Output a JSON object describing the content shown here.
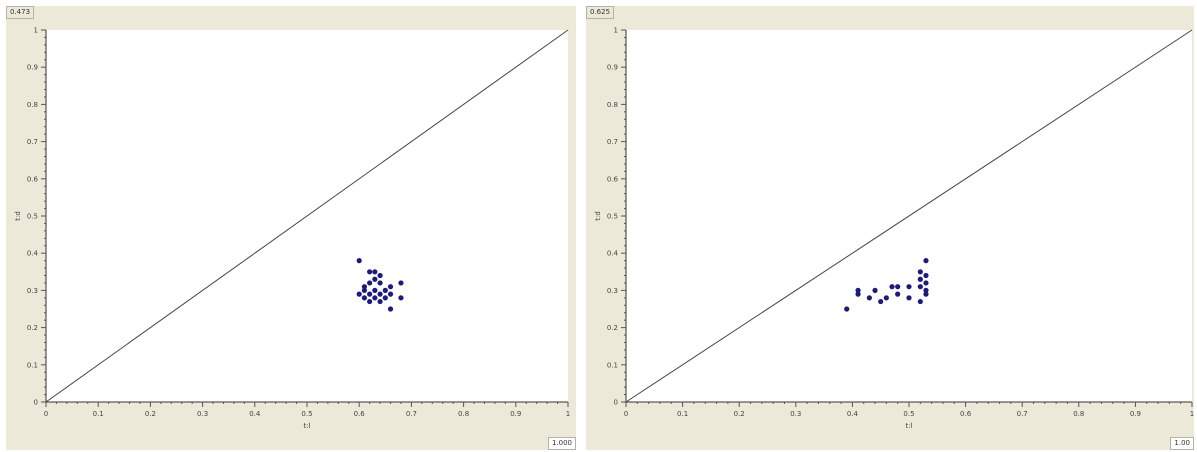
{
  "chart_data": [
    {
      "type": "scatter",
      "top_label": "0.473",
      "bottom_label": "1.000",
      "xlabel": "t:l",
      "ylabel": "t:d",
      "xlim": [
        0,
        1
      ],
      "ylim": [
        0,
        1
      ],
      "x_ticks": [
        "0",
        "0.1",
        "0.2",
        "0.3",
        "0.4",
        "0.5",
        "0.6",
        "0.7",
        "0.8",
        "0.9",
        "1"
      ],
      "y_ticks": [
        "0",
        "0.1",
        "0.2",
        "0.3",
        "0.4",
        "0.5",
        "0.6",
        "0.7",
        "0.8",
        "0.9",
        "1"
      ],
      "diagonal": true,
      "point_color": "#1a1a80",
      "points": [
        [
          0.6,
          0.38
        ],
        [
          0.62,
          0.35
        ],
        [
          0.63,
          0.35
        ],
        [
          0.64,
          0.34
        ],
        [
          0.63,
          0.33
        ],
        [
          0.62,
          0.32
        ],
        [
          0.64,
          0.32
        ],
        [
          0.61,
          0.31
        ],
        [
          0.66,
          0.31
        ],
        [
          0.68,
          0.32
        ],
        [
          0.63,
          0.3
        ],
        [
          0.65,
          0.3
        ],
        [
          0.61,
          0.3
        ],
        [
          0.62,
          0.29
        ],
        [
          0.64,
          0.29
        ],
        [
          0.66,
          0.29
        ],
        [
          0.61,
          0.28
        ],
        [
          0.63,
          0.28
        ],
        [
          0.65,
          0.28
        ],
        [
          0.68,
          0.28
        ],
        [
          0.62,
          0.27
        ],
        [
          0.64,
          0.27
        ],
        [
          0.66,
          0.25
        ],
        [
          0.6,
          0.29
        ]
      ]
    },
    {
      "type": "scatter",
      "top_label": "0.625",
      "bottom_label": "1.00",
      "xlabel": "t:l",
      "ylabel": "t:d",
      "xlim": [
        0,
        1
      ],
      "ylim": [
        0,
        1
      ],
      "x_ticks": [
        "0",
        "0.1",
        "0.2",
        "0.3",
        "0.4",
        "0.5",
        "0.6",
        "0.7",
        "0.8",
        "0.9",
        "1"
      ],
      "y_ticks": [
        "0",
        "0.1",
        "0.2",
        "0.3",
        "0.4",
        "0.5",
        "0.6",
        "0.7",
        "0.8",
        "0.9",
        "1"
      ],
      "diagonal": true,
      "point_color": "#1a1a80",
      "points": [
        [
          0.39,
          0.25
        ],
        [
          0.41,
          0.3
        ],
        [
          0.41,
          0.29
        ],
        [
          0.43,
          0.28
        ],
        [
          0.44,
          0.3
        ],
        [
          0.45,
          0.27
        ],
        [
          0.46,
          0.28
        ],
        [
          0.47,
          0.31
        ],
        [
          0.48,
          0.31
        ],
        [
          0.48,
          0.29
        ],
        [
          0.5,
          0.31
        ],
        [
          0.5,
          0.28
        ],
        [
          0.52,
          0.35
        ],
        [
          0.52,
          0.33
        ],
        [
          0.52,
          0.31
        ],
        [
          0.53,
          0.38
        ],
        [
          0.53,
          0.34
        ],
        [
          0.53,
          0.32
        ],
        [
          0.53,
          0.3
        ],
        [
          0.52,
          0.27
        ],
        [
          0.53,
          0.29
        ]
      ]
    }
  ]
}
